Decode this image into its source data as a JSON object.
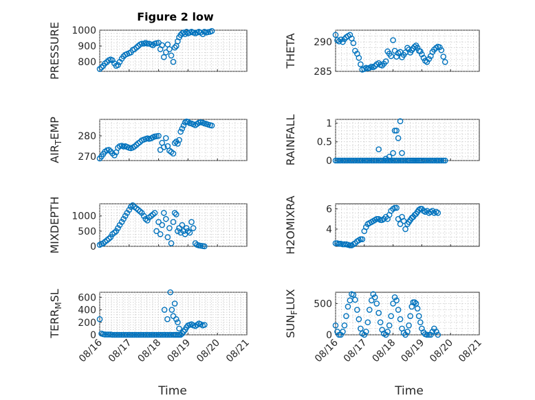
{
  "figure_title": "Figure 2 low",
  "x_axis_label": "Time",
  "marker_color": "#0072bd",
  "chart_data": [
    {
      "type": "scatter",
      "title": "Figure 2 low",
      "ylabel_parts": [
        "PRESSURE"
      ],
      "ylim": [
        740,
        1000
      ],
      "yticks": [
        "800",
        "900",
        "1000"
      ],
      "ytick_values": [
        800,
        900,
        1000
      ],
      "x": [
        0.0,
        0.06,
        0.12,
        0.18,
        0.25,
        0.31,
        0.37,
        0.43,
        0.5,
        0.56,
        0.62,
        0.68,
        0.75,
        0.81,
        0.87,
        0.93,
        1.0,
        1.06,
        1.12,
        1.18,
        1.25,
        1.31,
        1.37,
        1.43,
        1.5,
        1.56,
        1.62,
        1.68,
        1.75,
        1.81,
        1.87,
        1.93,
        2.0,
        2.06,
        2.12,
        2.18,
        2.25,
        2.31,
        2.37,
        2.43,
        2.5,
        2.55,
        2.6,
        2.65,
        2.7,
        2.75,
        2.8,
        2.85,
        2.9,
        2.95,
        3.0,
        3.06,
        3.12,
        3.18,
        3.25,
        3.31,
        3.37,
        3.43,
        3.5,
        3.56,
        3.62,
        3.68,
        3.75,
        3.81
      ],
      "values": [
        755,
        765,
        775,
        790,
        800,
        810,
        815,
        810,
        790,
        775,
        780,
        800,
        820,
        835,
        845,
        850,
        855,
        860,
        875,
        880,
        890,
        900,
        910,
        915,
        915,
        920,
        915,
        915,
        910,
        905,
        915,
        918,
        920,
        880,
        905,
        830,
        860,
        910,
        880,
        840,
        800,
        890,
        900,
        930,
        955,
        970,
        980,
        985,
        975,
        990,
        980,
        985,
        990,
        985,
        980,
        985,
        990,
        985,
        975,
        990,
        985,
        988,
        990,
        995
      ]
    },
    {
      "type": "scatter",
      "ylabel_parts": [
        "THETA"
      ],
      "ylim": [
        285,
        292
      ],
      "yticks": [
        "285",
        "290"
      ],
      "ytick_values": [
        285,
        290
      ],
      "x": [
        0.0,
        0.06,
        0.12,
        0.18,
        0.25,
        0.31,
        0.37,
        0.43,
        0.5,
        0.56,
        0.62,
        0.68,
        0.75,
        0.81,
        0.87,
        0.93,
        1.0,
        1.06,
        1.12,
        1.18,
        1.25,
        1.31,
        1.37,
        1.43,
        1.5,
        1.56,
        1.62,
        1.68,
        1.75,
        1.81,
        1.87,
        1.93,
        2.0,
        2.06,
        2.12,
        2.18,
        2.25,
        2.31,
        2.37,
        2.43,
        2.5,
        2.55,
        2.6,
        2.65,
        2.7,
        2.75,
        2.8,
        2.85,
        2.9,
        2.95,
        3.0,
        3.06,
        3.12,
        3.18,
        3.25,
        3.31,
        3.37,
        3.43,
        3.5,
        3.56,
        3.62,
        3.68,
        3.75,
        3.81
      ],
      "values": [
        291.2,
        290.3,
        290.1,
        290.4,
        290.0,
        290.5,
        290.8,
        291.0,
        291.2,
        290.6,
        289.8,
        288.5,
        288.0,
        287.3,
        286.2,
        285.3,
        285.4,
        285.6,
        285.5,
        285.6,
        285.8,
        285.7,
        285.9,
        286.2,
        286.4,
        286.1,
        286.0,
        286.3,
        286.7,
        288.4,
        288.0,
        287.6,
        290.3,
        288.5,
        287.5,
        288.1,
        288.3,
        287.4,
        287.8,
        288.2,
        289.0,
        288.7,
        288.2,
        288.6,
        288.9,
        289.2,
        289.4,
        289.0,
        288.5,
        288.4,
        287.9,
        287.3,
        286.8,
        286.6,
        287.1,
        287.6,
        288.3,
        288.7,
        289.0,
        289.2,
        289.1,
        288.6,
        287.5,
        286.6
      ]
    },
    {
      "type": "scatter",
      "ylabel_parts": [
        "AIR",
        "T",
        "EMP"
      ],
      "ylim": [
        268,
        288
      ],
      "yticks": [
        "270",
        "280"
      ],
      "ytick_values": [
        270,
        280
      ],
      "x": [
        0.0,
        0.06,
        0.12,
        0.18,
        0.25,
        0.31,
        0.37,
        0.43,
        0.5,
        0.56,
        0.62,
        0.68,
        0.75,
        0.81,
        0.87,
        0.93,
        1.0,
        1.06,
        1.12,
        1.18,
        1.25,
        1.31,
        1.37,
        1.43,
        1.5,
        1.56,
        1.62,
        1.68,
        1.75,
        1.81,
        1.87,
        1.93,
        2.0,
        2.06,
        2.12,
        2.18,
        2.25,
        2.31,
        2.37,
        2.43,
        2.5,
        2.55,
        2.6,
        2.65,
        2.7,
        2.75,
        2.8,
        2.85,
        2.9,
        2.95,
        3.0,
        3.06,
        3.12,
        3.18,
        3.25,
        3.31,
        3.37,
        3.43,
        3.5,
        3.56,
        3.62,
        3.68,
        3.75,
        3.81
      ],
      "values": [
        269.0,
        270.0,
        271.2,
        272.3,
        273.0,
        273.2,
        272.5,
        271.5,
        270.5,
        272.0,
        274.2,
        275.0,
        275.2,
        274.8,
        275.0,
        274.6,
        274.2,
        274.0,
        274.3,
        274.8,
        275.6,
        276.4,
        277.0,
        277.8,
        278.2,
        278.5,
        278.8,
        278.5,
        278.8,
        279.3,
        279.7,
        279.8,
        280.0,
        273.2,
        276.6,
        274.5,
        278.9,
        275.0,
        272.8,
        272.2,
        271.4,
        276.5,
        277.2,
        276.2,
        278.0,
        282.0,
        283.5,
        285.0,
        286.5,
        287.0,
        286.8,
        286.2,
        286.0,
        285.6,
        285.2,
        285.8,
        286.4,
        286.6,
        286.4,
        286.0,
        285.8,
        285.5,
        285.2,
        285.0
      ]
    },
    {
      "type": "scatter",
      "ylabel_parts": [
        "RAINFALL"
      ],
      "ylim": [
        0,
        1.1
      ],
      "yticks": [
        "0",
        "0.5",
        "1"
      ],
      "ytick_values": [
        0,
        0.5,
        1
      ],
      "x": [
        0.0,
        0.06,
        0.12,
        0.18,
        0.25,
        0.31,
        0.37,
        0.43,
        0.5,
        0.56,
        0.62,
        0.68,
        0.75,
        0.81,
        0.87,
        0.93,
        1.0,
        1.06,
        1.12,
        1.18,
        1.25,
        1.31,
        1.37,
        1.43,
        1.5,
        1.56,
        1.62,
        1.68,
        1.75,
        1.81,
        1.87,
        1.93,
        2.0,
        2.06,
        2.12,
        2.18,
        2.25,
        2.31,
        2.37,
        2.43,
        2.5,
        2.55,
        2.6,
        2.65,
        2.7,
        2.75,
        2.8,
        2.85,
        2.9,
        2.95,
        3.0,
        3.06,
        3.12,
        3.18,
        3.25,
        3.31,
        3.37,
        3.43,
        3.5,
        3.56,
        3.62,
        3.68,
        3.75,
        3.81,
        1.5,
        1.75,
        1.87,
        2.0,
        2.06,
        2.12,
        2.18,
        2.25,
        2.31
      ],
      "values": [
        0,
        0,
        0,
        0,
        0,
        0,
        0,
        0,
        0,
        0,
        0,
        0,
        0,
        0,
        0,
        0,
        0,
        0,
        0,
        0,
        0,
        0,
        0,
        0,
        0,
        0,
        0,
        0,
        0,
        0,
        0,
        0,
        0,
        0,
        0,
        0,
        0,
        0,
        0,
        0,
        0,
        0,
        0,
        0,
        0,
        0,
        0,
        0,
        0,
        0,
        0,
        0,
        0,
        0,
        0,
        0,
        0,
        0,
        0,
        0,
        0,
        0,
        0,
        0,
        0.3,
        0.05,
        0.1,
        0.2,
        0.8,
        0.8,
        0.6,
        1.05,
        0.2
      ]
    },
    {
      "type": "scatter",
      "ylabel_parts": [
        "MIXDEPTH"
      ],
      "ylim": [
        0,
        1400
      ],
      "yticks": [
        "0",
        "500",
        "1000"
      ],
      "ytick_values": [
        0,
        500,
        1000
      ],
      "x": [
        0.0,
        0.06,
        0.12,
        0.18,
        0.25,
        0.31,
        0.37,
        0.43,
        0.5,
        0.56,
        0.62,
        0.68,
        0.75,
        0.81,
        0.87,
        0.93,
        1.0,
        1.06,
        1.12,
        1.18,
        1.25,
        1.31,
        1.37,
        1.43,
        1.5,
        1.56,
        1.62,
        1.68,
        1.75,
        1.81,
        1.87,
        1.93,
        2.0,
        2.06,
        2.12,
        2.18,
        2.25,
        2.31,
        2.37,
        2.43,
        2.5,
        2.55,
        2.6,
        2.65,
        2.7,
        2.75,
        2.8,
        2.85,
        2.9,
        2.95,
        3.0,
        3.06,
        3.12,
        3.18,
        3.25,
        3.31,
        3.37,
        3.43,
        3.5,
        3.56
      ],
      "values": [
        50,
        80,
        100,
        150,
        200,
        250,
        300,
        400,
        450,
        500,
        600,
        700,
        800,
        900,
        1000,
        1100,
        1200,
        1300,
        1350,
        1300,
        1250,
        1200,
        1150,
        1100,
        1000,
        900,
        850,
        950,
        1000,
        1050,
        1100,
        500,
        800,
        400,
        700,
        1100,
        900,
        300,
        600,
        100,
        800,
        1100,
        1050,
        500,
        600,
        450,
        700,
        500,
        400,
        600,
        500,
        450,
        800,
        600,
        100,
        50,
        30,
        20,
        10,
        0
      ]
    },
    {
      "type": "scatter",
      "ylabel_parts": [
        "H2OMIXRA"
      ],
      "ylim": [
        2.3,
        6.5
      ],
      "yticks": [
        "4",
        "6"
      ],
      "ytick_values": [
        4,
        6
      ],
      "x": [
        0.0,
        0.06,
        0.12,
        0.18,
        0.25,
        0.31,
        0.37,
        0.43,
        0.5,
        0.56,
        0.62,
        0.68,
        0.75,
        0.81,
        0.87,
        0.93,
        1.0,
        1.06,
        1.12,
        1.18,
        1.25,
        1.31,
        1.37,
        1.43,
        1.5,
        1.56,
        1.62,
        1.68,
        1.75,
        1.81,
        1.87,
        1.93,
        2.0,
        2.06,
        2.12,
        2.18,
        2.25,
        2.31,
        2.37,
        2.43,
        2.5,
        2.55,
        2.6,
        2.65,
        2.7,
        2.75,
        2.8,
        2.85,
        2.9,
        2.95,
        3.0,
        3.06,
        3.12,
        3.18,
        3.25,
        3.31,
        3.37,
        3.43,
        3.5,
        3.56
      ],
      "values": [
        2.6,
        2.6,
        2.55,
        2.55,
        2.5,
        2.5,
        2.5,
        2.45,
        2.4,
        2.4,
        2.5,
        2.6,
        2.8,
        2.9,
        3.0,
        3.0,
        3.8,
        4.2,
        4.5,
        4.6,
        4.7,
        4.8,
        4.9,
        5.0,
        5.0,
        4.9,
        4.9,
        5.0,
        5.2,
        5.0,
        5.4,
        5.8,
        6.0,
        6.1,
        6.1,
        5.0,
        4.5,
        5.2,
        4.8,
        4.0,
        4.5,
        4.7,
        4.9,
        5.1,
        5.2,
        5.4,
        5.5,
        5.7,
        5.9,
        6.0,
        6.0,
        5.8,
        5.7,
        5.8,
        5.6,
        5.7,
        5.8,
        5.6,
        5.7,
        5.6
      ]
    },
    {
      "type": "scatter",
      "ylabel_parts": [
        "TERR",
        "M",
        "SL"
      ],
      "ylim": [
        0,
        680
      ],
      "yticks": [
        "0",
        "200",
        "400",
        "600"
      ],
      "ytick_values": [
        0,
        200,
        400,
        600
      ],
      "x": [
        0.0,
        0.06,
        0.12,
        0.18,
        0.25,
        0.31,
        0.37,
        0.43,
        0.5,
        0.56,
        0.62,
        0.68,
        0.75,
        0.81,
        0.87,
        0.93,
        1.0,
        1.06,
        1.12,
        1.18,
        1.25,
        1.31,
        1.37,
        1.43,
        1.5,
        1.56,
        1.62,
        1.68,
        1.75,
        1.81,
        1.87,
        1.93,
        2.0,
        2.06,
        2.12,
        2.18,
        2.25,
        2.31,
        2.37,
        2.43,
        2.5,
        2.55,
        2.6,
        2.65,
        2.7,
        2.75,
        2.8,
        2.85,
        2.9,
        2.95,
        3.0,
        3.06,
        3.12,
        3.18,
        3.25,
        3.31,
        3.37,
        3.43,
        3.5,
        3.56,
        2.2,
        2.3,
        2.4,
        2.45,
        2.5,
        2.55,
        2.6,
        2.65,
        2.7
      ],
      "values": [
        250,
        20,
        10,
        5,
        5,
        5,
        5,
        0,
        0,
        0,
        0,
        0,
        0,
        0,
        0,
        0,
        0,
        0,
        0,
        0,
        0,
        0,
        0,
        0,
        0,
        0,
        0,
        0,
        0,
        0,
        0,
        0,
        0,
        0,
        0,
        0,
        0,
        0,
        0,
        0,
        0,
        0,
        0,
        0,
        0,
        0,
        20,
        50,
        80,
        120,
        150,
        160,
        170,
        150,
        140,
        160,
        180,
        170,
        150,
        160,
        400,
        250,
        680,
        400,
        300,
        500,
        250,
        200,
        100
      ]
    },
    {
      "type": "scatter",
      "ylabel_parts": [
        "SUN",
        "F",
        "LUX"
      ],
      "ylim": [
        0,
        680
      ],
      "yticks": [
        "0",
        "500"
      ],
      "ytick_values": [
        0,
        500
      ],
      "x": [
        0.0,
        0.06,
        0.12,
        0.18,
        0.25,
        0.31,
        0.37,
        0.43,
        0.5,
        0.56,
        0.62,
        0.68,
        0.75,
        0.81,
        0.87,
        0.93,
        1.0,
        1.06,
        1.12,
        1.18,
        1.25,
        1.31,
        1.37,
        1.43,
        1.5,
        1.56,
        1.62,
        1.68,
        1.75,
        1.81,
        1.87,
        1.93,
        2.0,
        2.06,
        2.12,
        2.18,
        2.25,
        2.31,
        2.37,
        2.43,
        2.5,
        2.55,
        2.6,
        2.65,
        2.7,
        2.75,
        2.8,
        2.85,
        2.9,
        2.95,
        3.0,
        3.06,
        3.12,
        3.18,
        3.25,
        3.31,
        3.37,
        3.43,
        3.5,
        3.56
      ],
      "values": [
        150,
        50,
        0,
        0,
        50,
        150,
        300,
        450,
        550,
        650,
        640,
        560,
        400,
        250,
        100,
        20,
        0,
        50,
        200,
        400,
        550,
        650,
        600,
        500,
        350,
        200,
        80,
        20,
        0,
        50,
        150,
        300,
        500,
        600,
        550,
        400,
        250,
        100,
        30,
        0,
        50,
        150,
        300,
        450,
        520,
        520,
        500,
        420,
        300,
        200,
        100,
        40,
        10,
        0,
        0,
        0,
        50,
        100,
        50,
        0
      ]
    }
  ],
  "x_ticks": [
    "08/16",
    "08/17",
    "08/18",
    "08/19",
    "08/20",
    "08/21"
  ],
  "x_tick_values": [
    0,
    1,
    2,
    3,
    4,
    5
  ]
}
